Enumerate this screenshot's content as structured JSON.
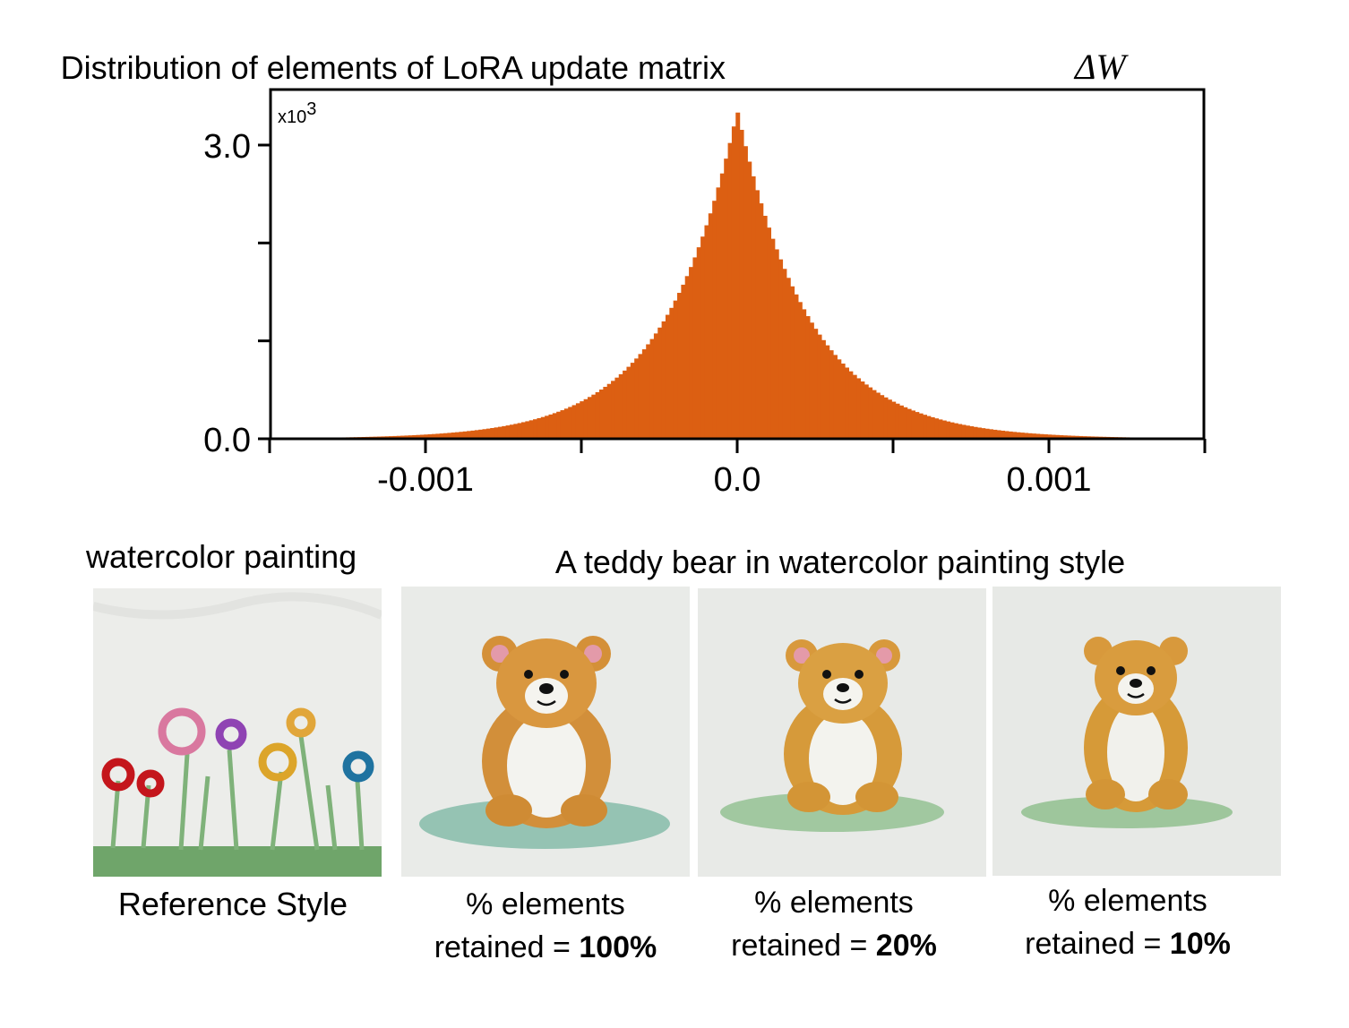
{
  "chart_data": {
    "type": "bar",
    "title": "Distribution of elements of LoRA update matrix",
    "title_math": "ΔW",
    "y_multiplier": "x10",
    "y_multiplier_exp": "3",
    "xlim": [
      -0.001,
      0.001
    ],
    "ylim": [
      0,
      3.0
    ],
    "ytick_labels": [
      "0.0",
      "3.0"
    ],
    "xtick_labels": [
      "-0.001",
      "0.0",
      "0.001"
    ],
    "peak": 3.35,
    "bin_width": 1.25e-05,
    "scale": 0.00023,
    "bar_color": "#dc5f12",
    "grid": false
  },
  "images": {
    "reference": {
      "top_caption": "watercolor painting",
      "bottom_caption": "Reference Style"
    },
    "generated_caption": "A teddy bear in watercolor painting style",
    "panels": [
      {
        "line1": "% elements",
        "line2_prefix": "retained = ",
        "percent": "100%"
      },
      {
        "line1": "% elements",
        "line2_prefix": "retained = ",
        "percent": "20%"
      },
      {
        "line1": "% elements",
        "line2_prefix": "retained = ",
        "percent": "10%"
      }
    ]
  }
}
